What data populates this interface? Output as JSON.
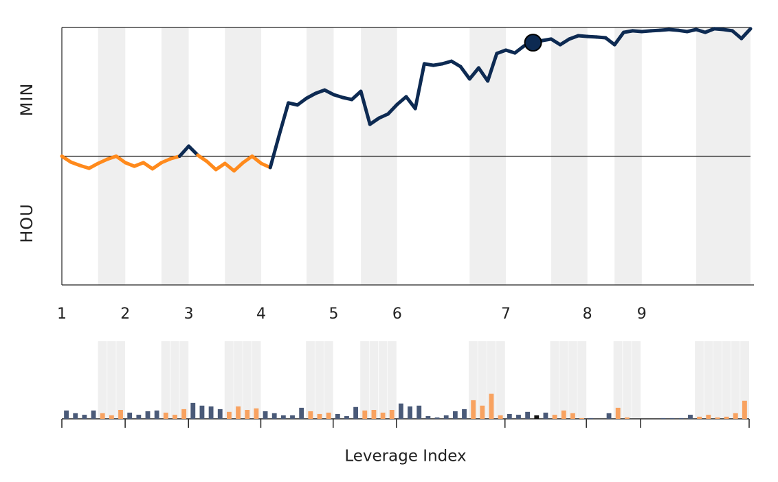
{
  "chart_data": [
    {
      "type": "line",
      "y_labels": [
        "MIN",
        "HOU"
      ],
      "x": [
        0,
        1,
        2,
        3,
        4,
        5,
        6,
        7,
        8,
        9,
        10,
        11,
        12,
        13,
        14,
        15,
        16,
        17,
        18,
        19,
        20,
        21,
        22,
        23,
        24,
        25,
        26,
        27,
        28,
        29,
        30,
        31,
        32,
        33,
        34,
        35,
        36,
        37,
        38,
        39,
        40,
        41,
        42,
        43,
        44,
        45,
        46,
        47,
        48,
        49,
        50,
        51,
        52,
        53,
        54,
        55,
        56,
        57,
        58,
        59,
        60,
        61,
        62,
        63,
        64,
        65,
        66,
        67,
        68,
        69,
        70,
        71,
        72,
        73,
        74,
        75,
        76
      ],
      "values": [
        0.5,
        0.477,
        0.464,
        0.453,
        0.472,
        0.488,
        0.5,
        0.475,
        0.461,
        0.475,
        0.451,
        0.475,
        0.49,
        0.5,
        0.539,
        0.504,
        0.48,
        0.448,
        0.472,
        0.443,
        0.475,
        0.5,
        0.472,
        0.456,
        0.584,
        0.707,
        0.699,
        0.725,
        0.744,
        0.757,
        0.739,
        0.728,
        0.72,
        0.752,
        0.624,
        0.648,
        0.664,
        0.701,
        0.731,
        0.685,
        0.859,
        0.853,
        0.859,
        0.869,
        0.848,
        0.8,
        0.843,
        0.792,
        0.899,
        0.912,
        0.901,
        0.928,
        0.941,
        0.949,
        0.955,
        0.933,
        0.955,
        0.968,
        0.965,
        0.963,
        0.96,
        0.933,
        0.981,
        0.987,
        0.984,
        0.987,
        0.989,
        0.992,
        0.989,
        0.984,
        0.992,
        0.981,
        0.995,
        0.992,
        0.987,
        0.957,
        0.995
      ],
      "color_above": "#0d2a52",
      "color_below": "#ff8a1c",
      "xlim": [
        0,
        76
      ],
      "ylim": [
        0,
        1
      ],
      "reference_line": 0.5,
      "xticks": [
        {
          "value": 0,
          "label": "1"
        },
        {
          "value": 7,
          "label": "2"
        },
        {
          "value": 14,
          "label": "3"
        },
        {
          "value": 22,
          "label": "4"
        },
        {
          "value": 30,
          "label": "5"
        },
        {
          "value": 37,
          "label": "6"
        },
        {
          "value": 49,
          "label": "7"
        },
        {
          "value": 58,
          "label": "8"
        },
        {
          "value": 64,
          "label": "9"
        }
      ],
      "bands": [
        [
          4,
          7
        ],
        [
          11,
          14
        ],
        [
          18,
          22
        ],
        [
          27,
          30
        ],
        [
          33,
          37
        ],
        [
          45,
          49
        ],
        [
          54,
          58
        ],
        [
          61,
          64
        ],
        [
          70,
          76
        ]
      ],
      "marker_x": 52
    },
    {
      "type": "bar",
      "xlabel": "Leverage Index",
      "x": [
        0.5,
        1.5,
        2.5,
        3.5,
        4.5,
        5.5,
        6.5,
        7.5,
        8.5,
        9.5,
        10.5,
        11.5,
        12.5,
        13.5,
        14.5,
        15.5,
        16.5,
        17.5,
        18.5,
        19.5,
        20.5,
        21.5,
        22.5,
        23.5,
        24.5,
        25.5,
        26.5,
        27.5,
        28.5,
        29.5,
        30.5,
        31.5,
        32.5,
        33.5,
        34.5,
        35.5,
        36.5,
        37.5,
        38.5,
        39.5,
        40.5,
        41.5,
        42.5,
        43.5,
        44.5,
        45.5,
        46.5,
        47.5,
        48.5,
        49.5,
        50.5,
        51.5,
        52.5,
        53.5,
        54.5,
        55.5,
        56.5,
        57.5,
        58.5,
        59.5,
        60.5,
        61.5,
        62.5,
        63.5,
        64.5,
        65.5,
        66.5,
        67.5,
        68.5,
        69.5,
        70.5,
        71.5,
        72.5,
        73.5,
        74.5,
        75.5
      ],
      "values": [
        0.43,
        0.29,
        0.21,
        0.43,
        0.29,
        0.18,
        0.46,
        0.32,
        0.21,
        0.39,
        0.43,
        0.32,
        0.21,
        0.5,
        0.82,
        0.68,
        0.64,
        0.5,
        0.36,
        0.64,
        0.46,
        0.54,
        0.39,
        0.29,
        0.18,
        0.18,
        0.57,
        0.39,
        0.25,
        0.32,
        0.25,
        0.14,
        0.61,
        0.43,
        0.46,
        0.32,
        0.46,
        0.79,
        0.64,
        0.68,
        0.14,
        0.07,
        0.18,
        0.39,
        0.5,
        0.96,
        0.68,
        1.29,
        0.18,
        0.25,
        0.21,
        0.36,
        0.18,
        0.32,
        0.21,
        0.43,
        0.29,
        0.04,
        0.04,
        0,
        0.29,
        0.57,
        0.07,
        0,
        0,
        0,
        0.04,
        0.04,
        0.04,
        0.21,
        0.11,
        0.21,
        0.07,
        0.11,
        0.29,
        0.93
      ],
      "colors": [
        "#4a5a78",
        "#4a5a78",
        "#4a5a78",
        "#4a5a78",
        "#f8a260",
        "#f8a260",
        "#f8a260",
        "#4a5a78",
        "#4a5a78",
        "#4a5a78",
        "#4a5a78",
        "#f8a260",
        "#f8a260",
        "#f8a260",
        "#4a5a78",
        "#4a5a78",
        "#4a5a78",
        "#4a5a78",
        "#f8a260",
        "#f8a260",
        "#f8a260",
        "#f8a260",
        "#4a5a78",
        "#4a5a78",
        "#4a5a78",
        "#4a5a78",
        "#4a5a78",
        "#f8a260",
        "#f8a260",
        "#f8a260",
        "#4a5a78",
        "#4a5a78",
        "#4a5a78",
        "#f8a260",
        "#f8a260",
        "#f8a260",
        "#f8a260",
        "#4a5a78",
        "#4a5a78",
        "#4a5a78",
        "#4a5a78",
        "#4a5a78",
        "#4a5a78",
        "#4a5a78",
        "#4a5a78",
        "#f8a260",
        "#f8a260",
        "#f8a260",
        "#f8a260",
        "#4a5a78",
        "#4a5a78",
        "#4a5a78",
        "#111111",
        "#4a5a78",
        "#f8a260",
        "#f8a260",
        "#f8a260",
        "#f8a260",
        "#4a5a78",
        "#4a5a78",
        "#4a5a78",
        "#f8a260",
        "#f8a260",
        "#f8a260",
        "#f8a260",
        "#f8a260",
        "#4a5a78",
        "#4a5a78",
        "#4a5a78",
        "#4a5a78",
        "#f8a260",
        "#f8a260",
        "#f8a260",
        "#f8a260",
        "#f8a260",
        "#f8a260"
      ],
      "xlim": [
        0,
        76
      ],
      "ylim": [
        0,
        4
      ],
      "xticks": [
        0,
        7,
        14,
        22,
        30,
        37,
        49,
        58,
        64
      ],
      "bands": [
        [
          4,
          7
        ],
        [
          11,
          14
        ],
        [
          18,
          22
        ],
        [
          27,
          30
        ],
        [
          33,
          37
        ],
        [
          45,
          49
        ],
        [
          54,
          58
        ],
        [
          61,
          64
        ],
        [
          70,
          76
        ]
      ]
    }
  ]
}
